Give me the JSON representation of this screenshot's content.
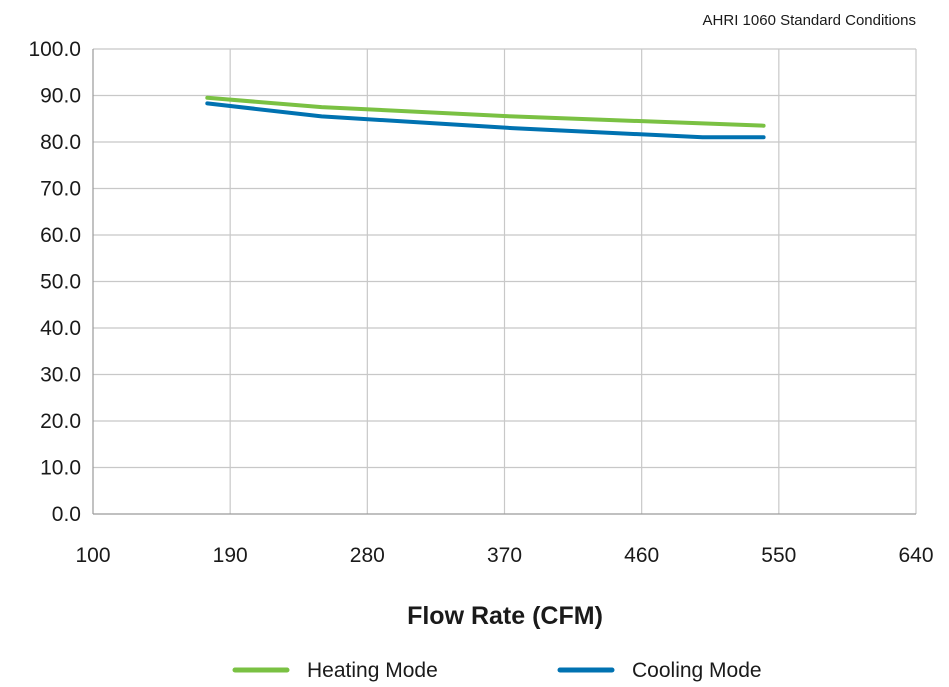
{
  "chart_data": {
    "type": "line",
    "annotation": "AHRI 1060 Standard Conditions",
    "xlabel": "Flow Rate (CFM)",
    "ylabel": "",
    "xlim": [
      100,
      640
    ],
    "ylim": [
      0,
      100
    ],
    "x_ticks": [
      100,
      190,
      280,
      370,
      460,
      550,
      640
    ],
    "y_ticks": [
      0,
      10,
      20,
      30,
      40,
      50,
      60,
      70,
      80,
      90,
      100
    ],
    "x_tick_labels": [
      "100",
      "190",
      "280",
      "370",
      "460",
      "550",
      "640"
    ],
    "y_tick_labels": [
      "0.0",
      "10.0",
      "20.0",
      "30.0",
      "40.0",
      "50.0",
      "60.0",
      "70.0",
      "80.0",
      "90.0",
      "100.0"
    ],
    "grid": true,
    "legend_position": "bottom",
    "series": [
      {
        "name": "Heating Mode",
        "color": "#7ac143",
        "x": [
          175,
          250,
          375,
          500,
          540
        ],
        "y": [
          89.5,
          87.5,
          85.5,
          84.0,
          83.5
        ]
      },
      {
        "name": "Cooling Mode",
        "color": "#0072b1",
        "x": [
          175,
          250,
          375,
          500,
          540
        ],
        "y": [
          88.3,
          85.5,
          83.0,
          81.0,
          81.0
        ]
      }
    ]
  }
}
